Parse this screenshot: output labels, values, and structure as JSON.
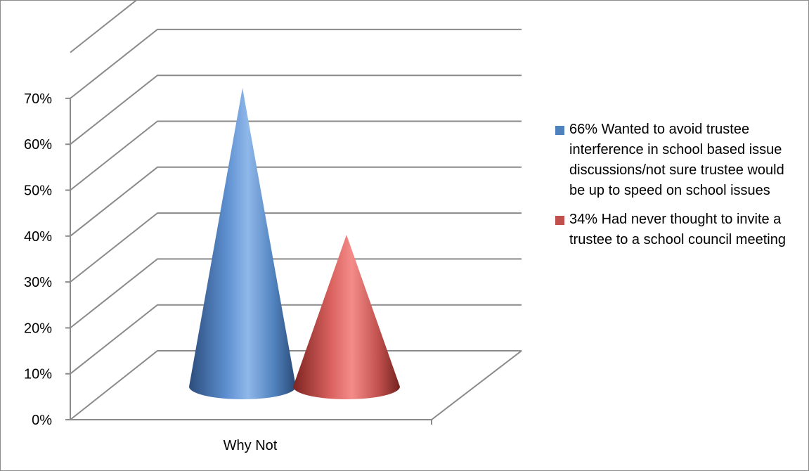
{
  "chart_data": {
    "type": "bar",
    "style": "3d-cone",
    "categories": [
      "Why Not"
    ],
    "series": [
      {
        "name": "66% Wanted to avoid trustee interference in school based issue discussions/not sure trustee would be up to speed on school issues",
        "values": [
          0.66
        ],
        "color": "#4f81bd"
      },
      {
        "name": "34% Had never thought to invite a trustee to a school council meeting",
        "values": [
          0.34
        ],
        "color": "#c0504d"
      }
    ],
    "ylim": [
      0,
      0.7
    ],
    "yticks": [
      "0%",
      "10%",
      "20%",
      "30%",
      "40%",
      "50%",
      "60%",
      "70%"
    ],
    "grid": true,
    "legend": "right",
    "title": "",
    "xlabel": "",
    "ylabel": ""
  }
}
